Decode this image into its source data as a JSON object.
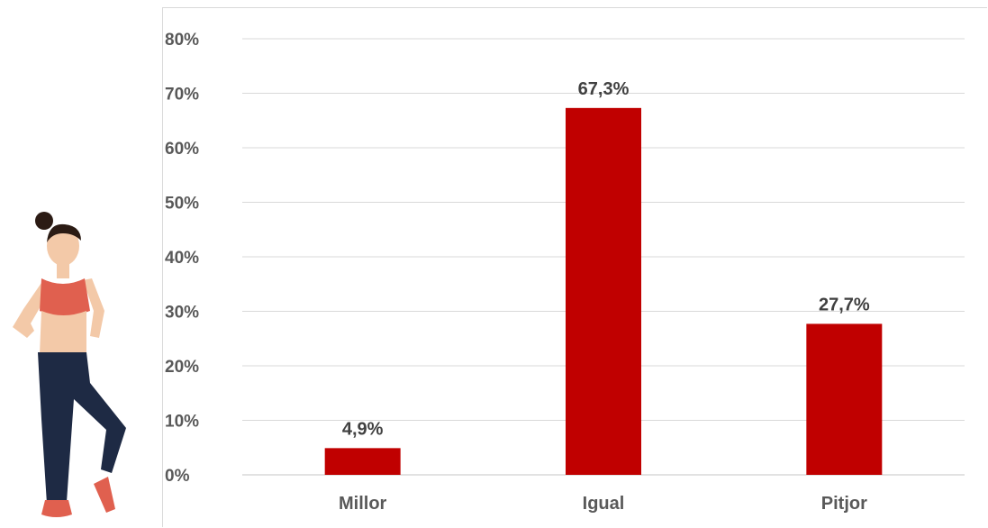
{
  "chart_data": {
    "type": "bar",
    "title": "",
    "xlabel": "",
    "ylabel": "",
    "categories": [
      "Millor",
      "Igual",
      "Pitjor"
    ],
    "values": [
      4.9,
      67.3,
      27.7
    ],
    "data_labels": [
      "4,9%",
      "67,3%",
      "27,7%"
    ],
    "ylim": [
      0,
      80
    ],
    "yticks": [
      0,
      10,
      20,
      30,
      40,
      50,
      60,
      70,
      80
    ],
    "ytick_labels": [
      "0%",
      "10%",
      "20%",
      "30%",
      "40%",
      "50%",
      "60%",
      "70%",
      "80%"
    ],
    "grid": true,
    "legend": "none",
    "bar_color": "#c00000",
    "grid_color": "#d9d9d9"
  },
  "illustration": {
    "icon": "woman-exercising-icon",
    "top_color": "#e0604f",
    "pants_color": "#1e2a44",
    "skin_color": "#f3c9a8",
    "hair_color": "#2b1b14",
    "shoe_color": "#e0604f"
  }
}
